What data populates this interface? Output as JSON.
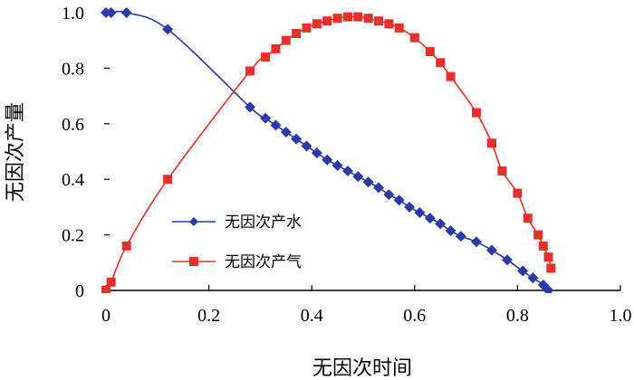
{
  "chart_data": {
    "type": "line",
    "xlabel": "无因次时间",
    "ylabel": "无因次产量",
    "xlim": [
      0,
      1.0
    ],
    "ylim": [
      0,
      1.0
    ],
    "x_ticks": [
      "0",
      "0.2",
      "0.4",
      "0.6",
      "0.8",
      "1.0"
    ],
    "y_ticks": [
      "0",
      "0.2",
      "0.4",
      "0.6",
      "0.8",
      "1.0"
    ],
    "grid": false,
    "legend_position": "lower-left-center",
    "series": [
      {
        "name": "无因次产水",
        "color": "#2b3aa5",
        "marker": "diamond",
        "points": [
          [
            0.0,
            1.0
          ],
          [
            0.01,
            1.0
          ],
          [
            0.04,
            1.0
          ],
          [
            0.12,
            0.94
          ],
          [
            0.28,
            0.66
          ],
          [
            0.31,
            0.62
          ],
          [
            0.33,
            0.595
          ],
          [
            0.35,
            0.57
          ],
          [
            0.37,
            0.545
          ],
          [
            0.39,
            0.52
          ],
          [
            0.41,
            0.495
          ],
          [
            0.43,
            0.47
          ],
          [
            0.45,
            0.45
          ],
          [
            0.47,
            0.43
          ],
          [
            0.49,
            0.41
          ],
          [
            0.51,
            0.39
          ],
          [
            0.53,
            0.37
          ],
          [
            0.55,
            0.345
          ],
          [
            0.57,
            0.325
          ],
          [
            0.59,
            0.3
          ],
          [
            0.61,
            0.28
          ],
          [
            0.63,
            0.26
          ],
          [
            0.65,
            0.24
          ],
          [
            0.67,
            0.215
          ],
          [
            0.69,
            0.195
          ],
          [
            0.72,
            0.175
          ],
          [
            0.75,
            0.145
          ],
          [
            0.78,
            0.11
          ],
          [
            0.81,
            0.07
          ],
          [
            0.83,
            0.045
          ],
          [
            0.85,
            0.02
          ],
          [
            0.86,
            0.0
          ]
        ]
      },
      {
        "name": "无因次产气",
        "color": "#e8302a",
        "marker": "square",
        "points": [
          [
            0.0,
            0.0
          ],
          [
            0.01,
            0.03
          ],
          [
            0.04,
            0.16
          ],
          [
            0.12,
            0.4
          ],
          [
            0.28,
            0.79
          ],
          [
            0.31,
            0.84
          ],
          [
            0.33,
            0.87
          ],
          [
            0.35,
            0.9
          ],
          [
            0.37,
            0.925
          ],
          [
            0.39,
            0.945
          ],
          [
            0.41,
            0.96
          ],
          [
            0.43,
            0.97
          ],
          [
            0.45,
            0.98
          ],
          [
            0.47,
            0.985
          ],
          [
            0.49,
            0.985
          ],
          [
            0.51,
            0.98
          ],
          [
            0.53,
            0.97
          ],
          [
            0.55,
            0.96
          ],
          [
            0.57,
            0.945
          ],
          [
            0.6,
            0.91
          ],
          [
            0.63,
            0.86
          ],
          [
            0.65,
            0.82
          ],
          [
            0.67,
            0.77
          ],
          [
            0.72,
            0.64
          ],
          [
            0.75,
            0.53
          ],
          [
            0.77,
            0.43
          ],
          [
            0.8,
            0.35
          ],
          [
            0.82,
            0.26
          ],
          [
            0.84,
            0.2
          ],
          [
            0.85,
            0.16
          ],
          [
            0.86,
            0.12
          ],
          [
            0.865,
            0.08
          ]
        ]
      }
    ]
  }
}
